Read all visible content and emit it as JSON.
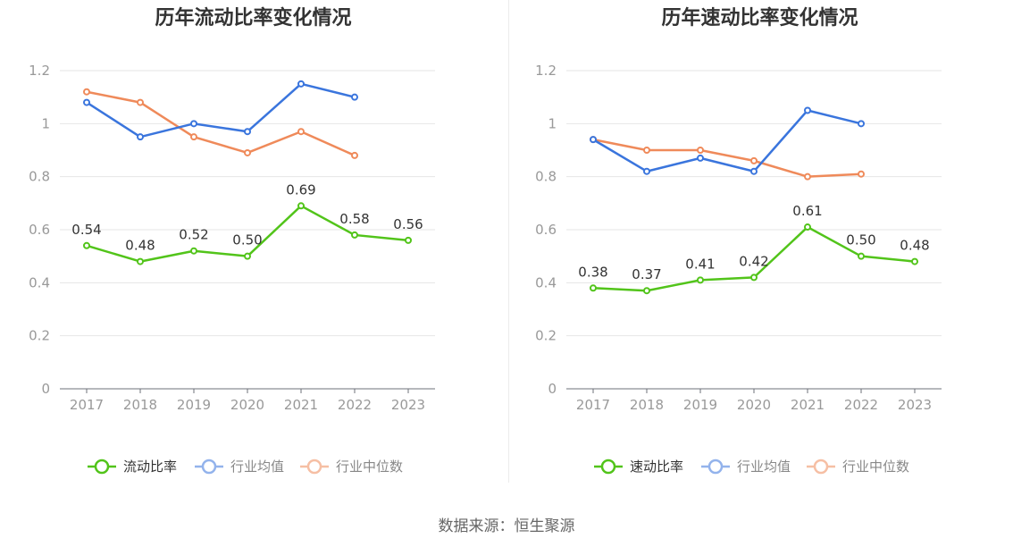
{
  "source_text": "数据来源：恒生聚源",
  "chart_data": [
    {
      "type": "line",
      "title": "历年流动比率变化情况",
      "categories": [
        "2017",
        "2018",
        "2019",
        "2020",
        "2021",
        "2022",
        "2023"
      ],
      "ylim": [
        0,
        1.2
      ],
      "yticks": [
        "0",
        "0.2",
        "0.4",
        "0.6",
        "0.8",
        "1",
        "1.2"
      ],
      "grid": true,
      "legend_position": "bottom",
      "series": [
        {
          "name": "流动比率",
          "color": "#52c41a",
          "values": [
            0.54,
            0.48,
            0.52,
            0.5,
            0.69,
            0.58,
            0.56
          ],
          "labels": [
            "0.54",
            "0.48",
            "0.52",
            "0.50",
            "0.69",
            "0.58",
            "0.56"
          ]
        },
        {
          "name": "行业均值",
          "color": "#3a75dd",
          "values": [
            1.08,
            0.95,
            1.0,
            0.97,
            1.15,
            1.1,
            null
          ]
        },
        {
          "name": "行业中位数",
          "color": "#ef8a5a",
          "values": [
            1.12,
            1.08,
            0.95,
            0.89,
            0.97,
            0.88,
            null
          ]
        }
      ]
    },
    {
      "type": "line",
      "title": "历年速动比率变化情况",
      "categories": [
        "2017",
        "2018",
        "2019",
        "2020",
        "2021",
        "2022",
        "2023"
      ],
      "ylim": [
        0,
        1.2
      ],
      "yticks": [
        "0",
        "0.2",
        "0.4",
        "0.6",
        "0.8",
        "1",
        "1.2"
      ],
      "grid": true,
      "legend_position": "bottom",
      "series": [
        {
          "name": "速动比率",
          "color": "#52c41a",
          "values": [
            0.38,
            0.37,
            0.41,
            0.42,
            0.61,
            0.5,
            0.48
          ],
          "labels": [
            "0.38",
            "0.37",
            "0.41",
            "0.42",
            "0.61",
            "0.50",
            "0.48"
          ]
        },
        {
          "name": "行业均值",
          "color": "#3a75dd",
          "values": [
            0.94,
            0.82,
            0.87,
            0.82,
            1.05,
            1.0,
            null
          ]
        },
        {
          "name": "行业中位数",
          "color": "#ef8a5a",
          "values": [
            0.94,
            0.9,
            0.9,
            0.86,
            0.8,
            0.81,
            null
          ]
        }
      ]
    }
  ]
}
